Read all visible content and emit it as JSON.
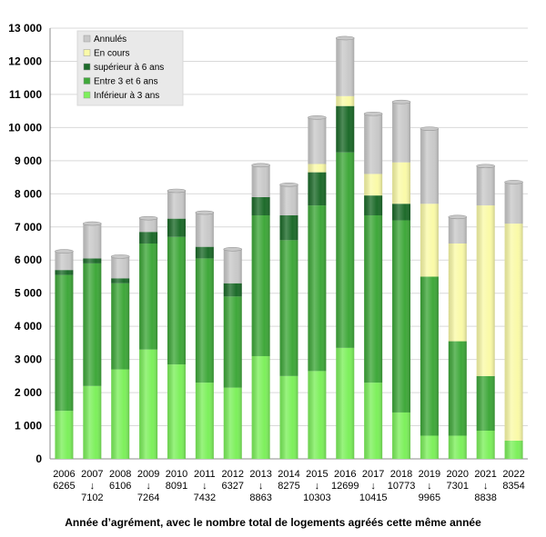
{
  "chart_data": {
    "type": "bar",
    "stacked": true,
    "title": "",
    "xlabel": "Année d’agrément, avec le nombre total de logements agréés cette même année",
    "ylabel": "",
    "ylim": [
      0,
      13000
    ],
    "yticks": [
      0,
      1000,
      2000,
      3000,
      4000,
      5000,
      6000,
      7000,
      8000,
      9000,
      10000,
      11000,
      12000,
      13000
    ],
    "ytick_labels": [
      "0",
      "1 000",
      "2 000",
      "3 000",
      "4 000",
      "5 000",
      "6 000",
      "7 000",
      "8 000",
      "9 000",
      "10 000",
      "11 000",
      "12 000",
      "13 000"
    ],
    "categories": [
      "2006",
      "2007",
      "2008",
      "2009",
      "2010",
      "2011",
      "2012",
      "2013",
      "2014",
      "2015",
      "2016",
      "2017",
      "2018",
      "2019",
      "2020",
      "2021",
      "2022"
    ],
    "totals": [
      "6265",
      "7102",
      "6106",
      "7264",
      "8091",
      "7432",
      "6327",
      "8863",
      "8275",
      "10303",
      "12699",
      "10415",
      "10773",
      "9965",
      "7301",
      "8838",
      "8354"
    ],
    "total_position": [
      "below",
      "arrow",
      "below",
      "arrow",
      "below",
      "arrow",
      "below",
      "arrow",
      "below",
      "arrow",
      "below",
      "arrow",
      "below",
      "arrow",
      "below",
      "arrow",
      "below"
    ],
    "arrow_glyph": "↓",
    "legend_position": "top-left",
    "series": [
      {
        "name": "Inférieur à 3 ans",
        "color": "#7df05c",
        "values": [
          1450,
          2200,
          2700,
          3300,
          2850,
          2300,
          2150,
          3100,
          2500,
          2650,
          3350,
          2300,
          1400,
          700,
          700,
          850,
          550
        ]
      },
      {
        "name": "Entre 3 et 6 ans",
        "color": "#3fa83a",
        "values": [
          4100,
          3700,
          2600,
          3200,
          3850,
          3750,
          2750,
          4250,
          4100,
          5000,
          5900,
          5050,
          5800,
          4800,
          2850,
          1650,
          0
        ]
      },
      {
        "name": "supérieur à 6 ans",
        "color": "#1d6b2a",
        "values": [
          150,
          150,
          150,
          350,
          550,
          350,
          400,
          550,
          750,
          1000,
          1400,
          600,
          500,
          0,
          0,
          0,
          0
        ]
      },
      {
        "name": "En cours",
        "color": "#fafaa8",
        "values": [
          0,
          0,
          0,
          0,
          0,
          0,
          0,
          0,
          0,
          250,
          300,
          650,
          1250,
          2200,
          2950,
          5150,
          6550
        ]
      },
      {
        "name": "Annulés",
        "color": "#c9c9c9",
        "values": [
          565,
          1052,
          656,
          414,
          841,
          1032,
          1027,
          963,
          925,
          1403,
          1749,
          1815,
          1823,
          2265,
          801,
          1188,
          1254
        ]
      }
    ]
  }
}
